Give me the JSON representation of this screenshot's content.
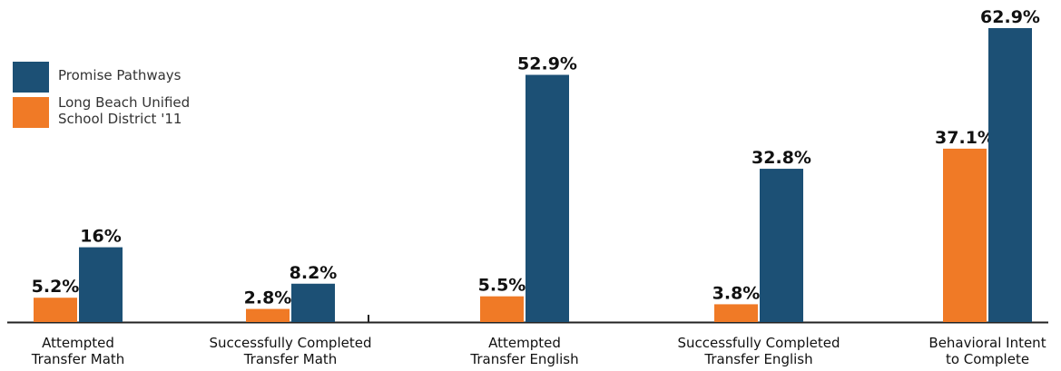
{
  "colors": {
    "promise": "#1c5075",
    "lbusd": "#f07a26",
    "axis": "#222222",
    "text": "#111111"
  },
  "legend": {
    "items": [
      {
        "label": "Promise Pathways",
        "color": "#1c5075"
      },
      {
        "label": "Long Beach Unified\nSchool District '11",
        "color": "#f07a26"
      }
    ]
  },
  "chart_data": {
    "type": "bar",
    "title": "",
    "xlabel": "",
    "ylabel": "",
    "ylim": [
      0,
      65
    ],
    "grid": false,
    "legend_position": "top-left",
    "categories": [
      "Attempted\nTransfer Math",
      "Successfully Completed\nTransfer Math",
      "Attempted\nTransfer English",
      "Successfully Completed\nTransfer English",
      "Behavioral Intent\nto Complete"
    ],
    "series": [
      {
        "name": "Long Beach Unified School District '11",
        "values": [
          5.2,
          2.8,
          5.5,
          3.8,
          37.1
        ],
        "labels": [
          "5.2%",
          "2.8%",
          "5.5%",
          "3.8%",
          "37.1%"
        ]
      },
      {
        "name": "Promise Pathways",
        "values": [
          16,
          8.2,
          52.9,
          32.8,
          62.9
        ],
        "labels": [
          "16%",
          "8.2%",
          "52.9%",
          "32.8%",
          "62.9%"
        ]
      }
    ]
  }
}
